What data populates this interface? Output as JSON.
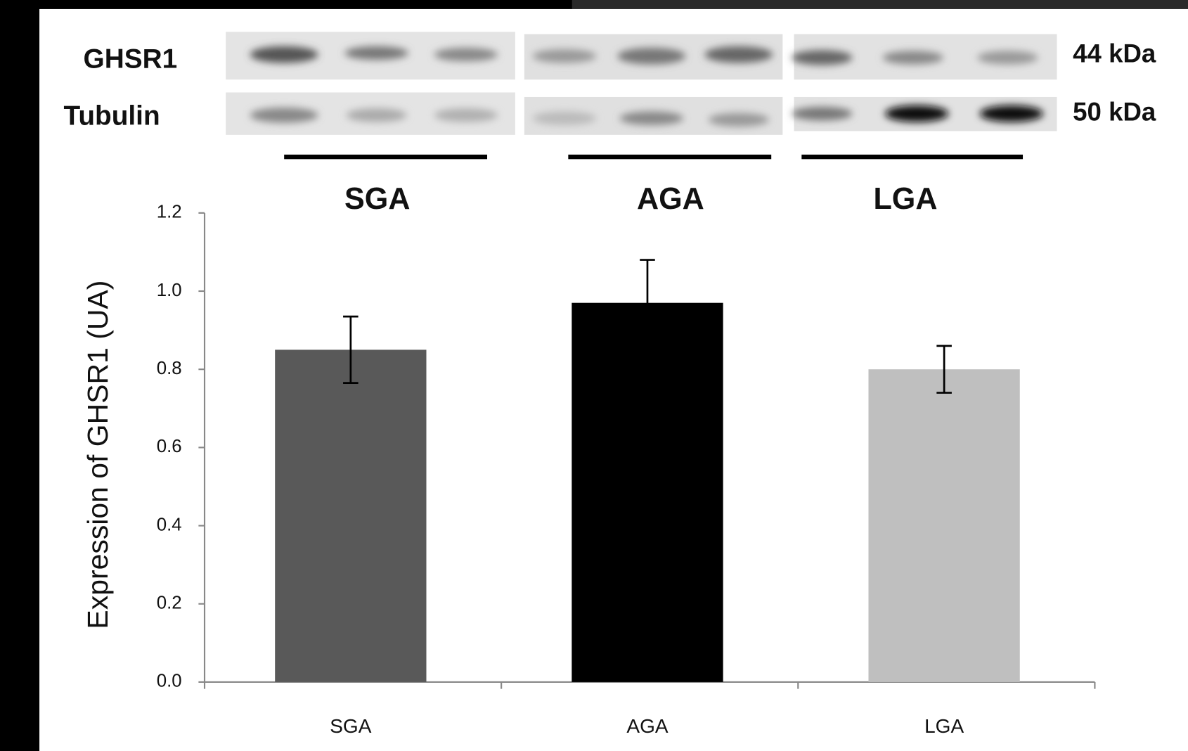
{
  "blot": {
    "rows": [
      "GHSR1",
      "Tubulin"
    ],
    "sizes": [
      "44 kDa",
      "50 kDa"
    ],
    "groups": [
      "SGA",
      "AGA",
      "LGA"
    ]
  },
  "chart_data": {
    "type": "bar",
    "y_label": "Expression of GHSR1 (UA)",
    "categories": [
      "SGA",
      "AGA",
      "LGA"
    ],
    "values": [
      0.85,
      0.97,
      0.8
    ],
    "errors": [
      0.085,
      0.11,
      0.06
    ],
    "colors": [
      "#595959",
      "#000000",
      "#bfbfbf"
    ],
    "ylim": [
      0,
      1.2
    ],
    "yticks": [
      {
        "value": 0,
        "label": "0.0"
      },
      0.2,
      0.4,
      0.6,
      0.8,
      {
        "value": 1,
        "label": "1.0"
      },
      1.2
    ],
    "grid": false
  }
}
